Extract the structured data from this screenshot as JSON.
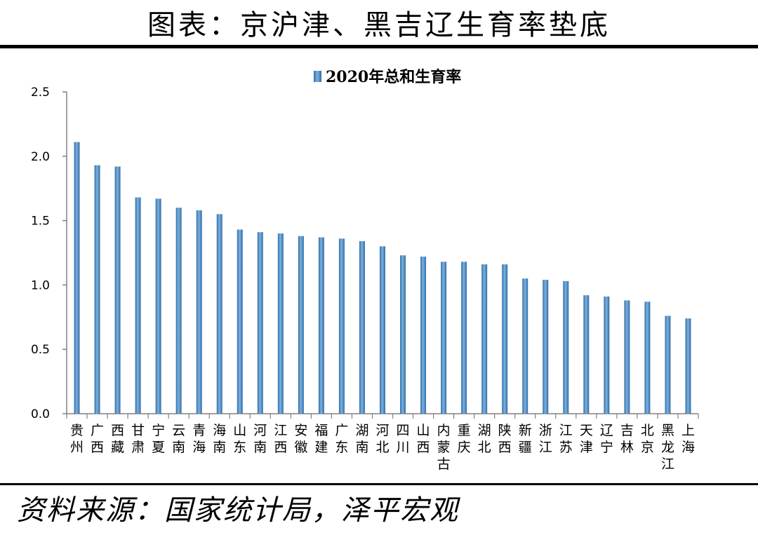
{
  "header": {
    "title": "图表：京沪津、黑吉辽生育率垫底"
  },
  "footer": {
    "source": "资料来源：国家统计局，泽平宏观"
  },
  "colors": {
    "bar": "#4a8cc4",
    "bar_dark": "#2f6ea8",
    "bar_light": "#7db1de",
    "axis": "#808080",
    "rule": "#000000"
  },
  "chart_data": {
    "type": "bar",
    "categories": [
      "贵州",
      "广西",
      "西藏",
      "甘肃",
      "宁夏",
      "云南",
      "青海",
      "海南",
      "山东",
      "河南",
      "江西",
      "安徽",
      "福建",
      "广东",
      "湖南",
      "河北",
      "四川",
      "山西",
      "内蒙古",
      "重庆",
      "湖北",
      "陕西",
      "新疆",
      "浙江",
      "江苏",
      "天津",
      "辽宁",
      "吉林",
      "北京",
      "黑龙江",
      "上海"
    ],
    "series": [
      {
        "name": "2020年总和生育率",
        "values": [
          2.11,
          1.93,
          1.92,
          1.68,
          1.67,
          1.6,
          1.58,
          1.55,
          1.43,
          1.41,
          1.4,
          1.38,
          1.37,
          1.36,
          1.34,
          1.3,
          1.23,
          1.22,
          1.18,
          1.18,
          1.16,
          1.16,
          1.05,
          1.04,
          1.03,
          0.92,
          0.91,
          0.88,
          0.87,
          0.76,
          0.74
        ]
      }
    ],
    "ylim": [
      0,
      2.5
    ],
    "yticks": [
      "0.0",
      "0.5",
      "1.0",
      "1.5",
      "2.0",
      "2.5"
    ],
    "legend": "top-center",
    "grid": false,
    "xlabel": "",
    "ylabel": ""
  }
}
